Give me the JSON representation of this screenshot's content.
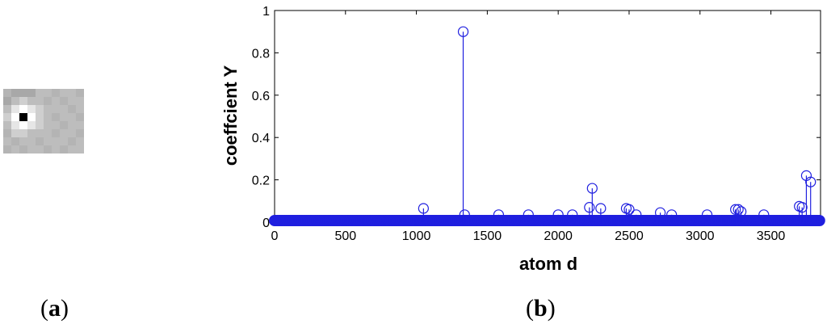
{
  "panels": {
    "a": "a",
    "b": "b"
  },
  "patch": {
    "palette": [
      "#a8a8a8",
      "#b4b4b4",
      "#bdbdbd",
      "#cfcfcf",
      "#e6e6e6",
      "#ffffff",
      "#000000",
      "#9a9a9a"
    ],
    "cells": [
      [
        1,
        0,
        0,
        0,
        2,
        2,
        1,
        2,
        2,
        1
      ],
      [
        0,
        2,
        3,
        2,
        2,
        1,
        2,
        1,
        2,
        2
      ],
      [
        2,
        4,
        5,
        4,
        3,
        2,
        2,
        2,
        1,
        2
      ],
      [
        3,
        5,
        6,
        5,
        3,
        2,
        1,
        2,
        2,
        1
      ],
      [
        2,
        4,
        5,
        4,
        3,
        2,
        2,
        1,
        2,
        2
      ],
      [
        1,
        3,
        3,
        2,
        2,
        2,
        1,
        2,
        2,
        1
      ],
      [
        2,
        1,
        2,
        2,
        1,
        2,
        2,
        2,
        1,
        2
      ],
      [
        1,
        2,
        1,
        2,
        2,
        1,
        2,
        1,
        2,
        2
      ]
    ]
  },
  "chart_data": {
    "type": "stem",
    "xlabel": "atom d",
    "ylabel": "coeffcient Y",
    "xlim": [
      0,
      3850
    ],
    "ylim": [
      0,
      1
    ],
    "xticks": [
      0,
      500,
      1000,
      1500,
      2000,
      2500,
      3000,
      3500
    ],
    "yticks": [
      0,
      0.2,
      0.4,
      0.6,
      0.8,
      1
    ],
    "ytick_labels": [
      "0",
      "0.2",
      "0.4",
      "0.6",
      "0.8",
      "1"
    ],
    "color": "#1f1fdf",
    "baseline_markers": {
      "from": 0,
      "to": 3850,
      "step": 9,
      "value": 0.0
    },
    "x": [
      1050,
      1330,
      1340,
      1580,
      1790,
      2000,
      2100,
      2220,
      2240,
      2300,
      2480,
      2500,
      2550,
      2720,
      2800,
      3050,
      3250,
      3270,
      3290,
      3450,
      3700,
      3720,
      3750,
      3780
    ],
    "y": [
      0.065,
      0.9,
      0.035,
      0.035,
      0.035,
      0.035,
      0.035,
      0.07,
      0.16,
      0.065,
      0.065,
      0.06,
      0.035,
      0.045,
      0.035,
      0.035,
      0.06,
      0.06,
      0.05,
      0.035,
      0.075,
      0.07,
      0.22,
      0.19
    ]
  }
}
